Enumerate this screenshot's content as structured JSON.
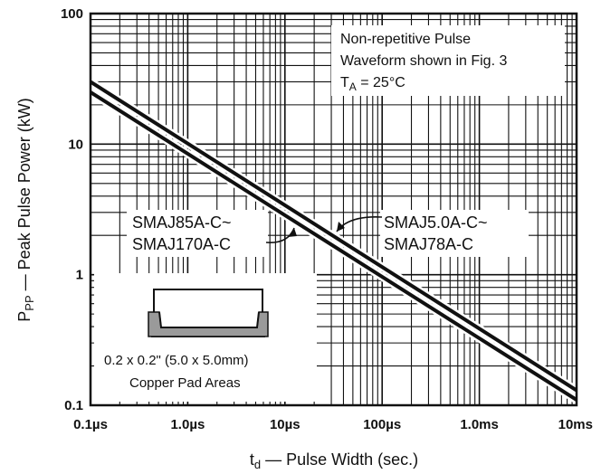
{
  "chart_data": {
    "type": "line",
    "x_scale": "log",
    "y_scale": "log",
    "xlim": [
      "0.1µs",
      "10ms"
    ],
    "ylim": [
      0.1,
      100
    ],
    "xlabel": "t_d — Pulse Width (sec.)",
    "xlabel_main": "t",
    "xlabel_sub": "d",
    "xlabel_rest": " — Pulse Width (sec.)",
    "ylabel": "P_PP — Peak Pulse Power (kW)",
    "ylabel_main": "P",
    "ylabel_sub": "PP",
    "ylabel_rest": " — Peak Pulse Power (kW)",
    "x_ticks": [
      "0.1µs",
      "1.0µs",
      "10µs",
      "100µs",
      "1.0ms",
      "10ms"
    ],
    "y_ticks": [
      "100",
      "10",
      "1",
      "0.1"
    ],
    "grid": true,
    "series": [
      {
        "label_lines": [
          "SMAJ5.0A-C~",
          "SMAJ78A-C"
        ],
        "x": [
          "0.1µs",
          "10ms"
        ],
        "y": [
          30,
          0.13
        ]
      },
      {
        "label_lines": [
          "SMAJ85A-C~",
          "SMAJ170A-C"
        ],
        "x": [
          "0.1µs",
          "10ms"
        ],
        "y": [
          25,
          0.11
        ]
      }
    ],
    "annotation": {
      "line1": "Non-repetitive Pulse",
      "line2": "Waveform shown in Fig. 3",
      "line3_main": "T",
      "line3_sub": "A",
      "line3_rest": " = 25°C"
    },
    "inset": {
      "line1": "0.2 x 0.2\" (5.0 x 5.0mm)",
      "line2": "Copper Pad Areas"
    }
  }
}
